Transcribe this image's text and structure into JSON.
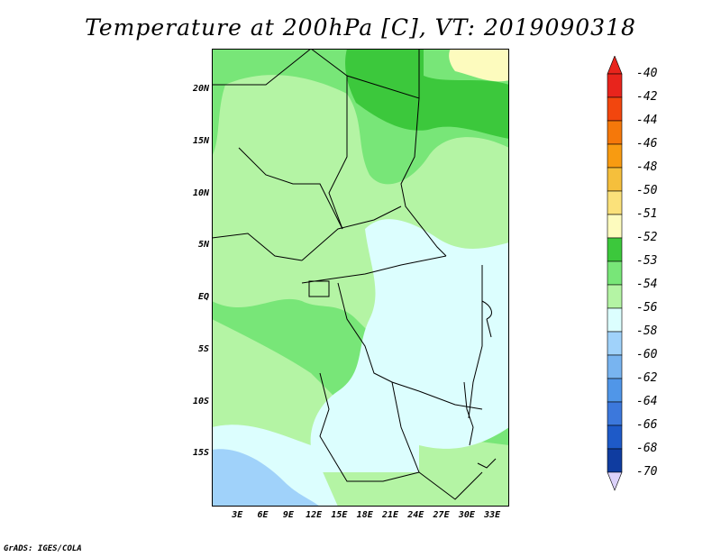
{
  "title": "Temperature at 200hPa [C], VT: 2019090318",
  "credit": "GrADS: IGES/COLA",
  "map": {
    "lon_range": [
      0,
      35
    ],
    "lat_range": [
      -20,
      24
    ],
    "lat_labels": [
      {
        "text": "20N",
        "lat": 20
      },
      {
        "text": "15N",
        "lat": 15
      },
      {
        "text": "10N",
        "lat": 10
      },
      {
        "text": "5N",
        "lat": 5
      },
      {
        "text": "EQ",
        "lat": 0
      },
      {
        "text": "5S",
        "lat": -5
      },
      {
        "text": "10S",
        "lat": -10
      },
      {
        "text": "15S",
        "lat": -15
      }
    ],
    "lon_labels": [
      {
        "text": "3E",
        "lon": 3
      },
      {
        "text": "6E",
        "lon": 6
      },
      {
        "text": "9E",
        "lon": 9
      },
      {
        "text": "12E",
        "lon": 12
      },
      {
        "text": "15E",
        "lon": 15
      },
      {
        "text": "18E",
        "lon": 18
      },
      {
        "text": "21E",
        "lon": 21
      },
      {
        "text": "24E",
        "lon": 24
      },
      {
        "text": "27E",
        "lon": 27
      },
      {
        "text": "30E",
        "lon": 30
      },
      {
        "text": "33E",
        "lon": 33
      }
    ]
  },
  "colorbar": {
    "colors": {
      "-40": "#e8241c",
      "-42": "#f2460e",
      "-44": "#f5780a",
      "-46": "#f89b11",
      "-48": "#f5bf3c",
      "-50": "#fbe17a",
      "-51": "#fdfbbe",
      "-52": "#3cc83c",
      "-53": "#78e678",
      "-54": "#b4f4a4",
      "-56": "#dcfefe",
      "-58": "#a0d2fa",
      "-60": "#78b4f0",
      "-62": "#5096e8",
      "-64": "#3c78dc",
      "-66": "#1e5ac8",
      "-68": "#0f3ca0",
      "-70": "#0a1e78"
    },
    "levels": [
      "-40",
      "-42",
      "-44",
      "-46",
      "-48",
      "-50",
      "-51",
      "-52",
      "-53",
      "-54",
      "-56",
      "-58",
      "-60",
      "-62",
      "-64",
      "-66",
      "-68",
      "-70"
    ],
    "top_triangle_color": "#e8241c",
    "bottom_triangle_color": "#dcd2fa"
  }
}
